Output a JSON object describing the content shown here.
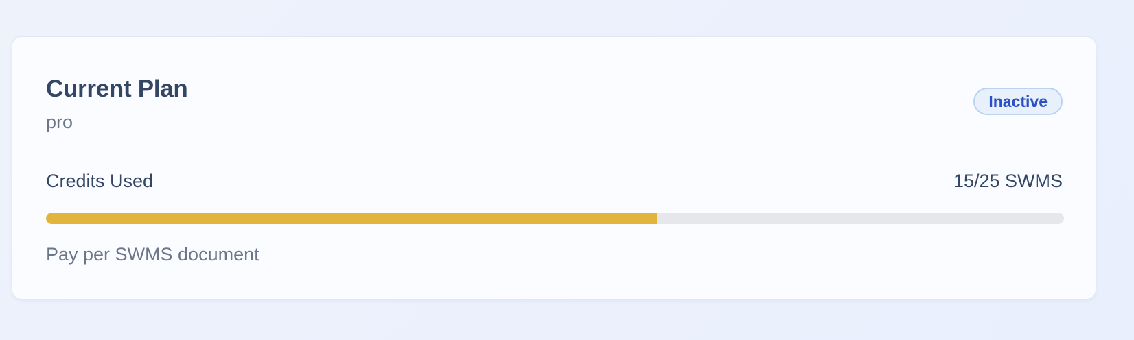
{
  "plan_card": {
    "title": "Current Plan",
    "plan_name": "pro",
    "status": "Inactive",
    "usage_label": "Credits Used",
    "usage_value": "15/25 SWMS",
    "credits_used": 15,
    "credits_total": 25,
    "progress_fraction": 0.6,
    "note": "Pay per SWMS document"
  },
  "colors": {
    "progress_fill": "#e2b33d",
    "progress_track": "#e5e7eb",
    "badge_text": "#2a4fc6",
    "title_text": "#334765"
  }
}
